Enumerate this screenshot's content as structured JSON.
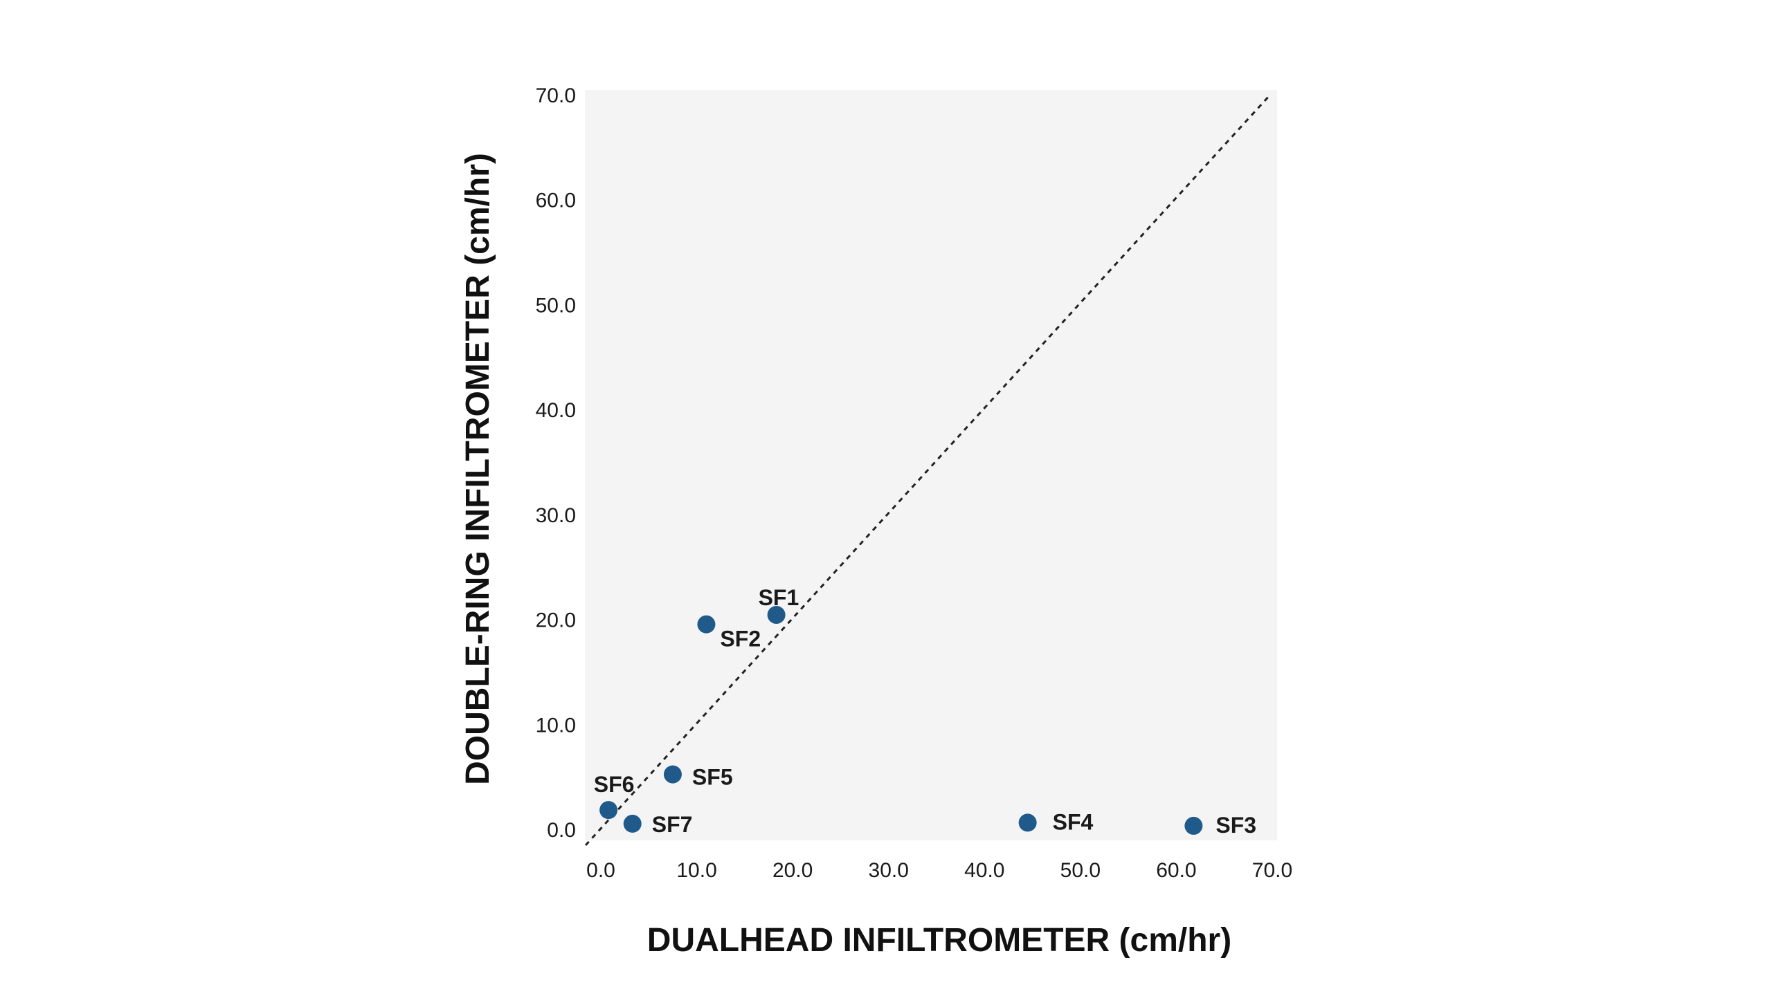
{
  "chart_data": {
    "type": "scatter",
    "title": "",
    "xlabel": "DUALHEAD INFILTROMETER (cm/hr)",
    "ylabel": "DOUBLE-RING INFILTROMETER (cm/hr)",
    "xlim": [
      0,
      70
    ],
    "ylim": [
      0,
      70
    ],
    "x_ticks": [
      "0.0",
      "10.0",
      "20.0",
      "30.0",
      "40.0",
      "50.0",
      "60.0",
      "70.0"
    ],
    "y_ticks": [
      "0.0",
      "10.0",
      "20.0",
      "30.0",
      "40.0",
      "50.0",
      "60.0",
      "70.0"
    ],
    "tick_values": [
      0,
      10,
      20,
      30,
      40,
      50,
      60,
      70
    ],
    "grid": false,
    "reference_line": "1:1",
    "colors": {
      "point": "#1f5a8b",
      "plot_background": "#f4f4f4",
      "reference_line": "#222222"
    },
    "series": [
      {
        "points": [
          {
            "label": "SF1",
            "x": 18.3,
            "y": 20.5
          },
          {
            "label": "SF2",
            "x": 11.0,
            "y": 19.6
          },
          {
            "label": "SF3",
            "x": 61.8,
            "y": 0.4
          },
          {
            "label": "SF4",
            "x": 44.5,
            "y": 0.7
          },
          {
            "label": "SF5",
            "x": 7.5,
            "y": 5.3
          },
          {
            "label": "SF6",
            "x": 0.8,
            "y": 1.9
          },
          {
            "label": "SF7",
            "x": 3.3,
            "y": 0.6
          }
        ]
      }
    ]
  }
}
